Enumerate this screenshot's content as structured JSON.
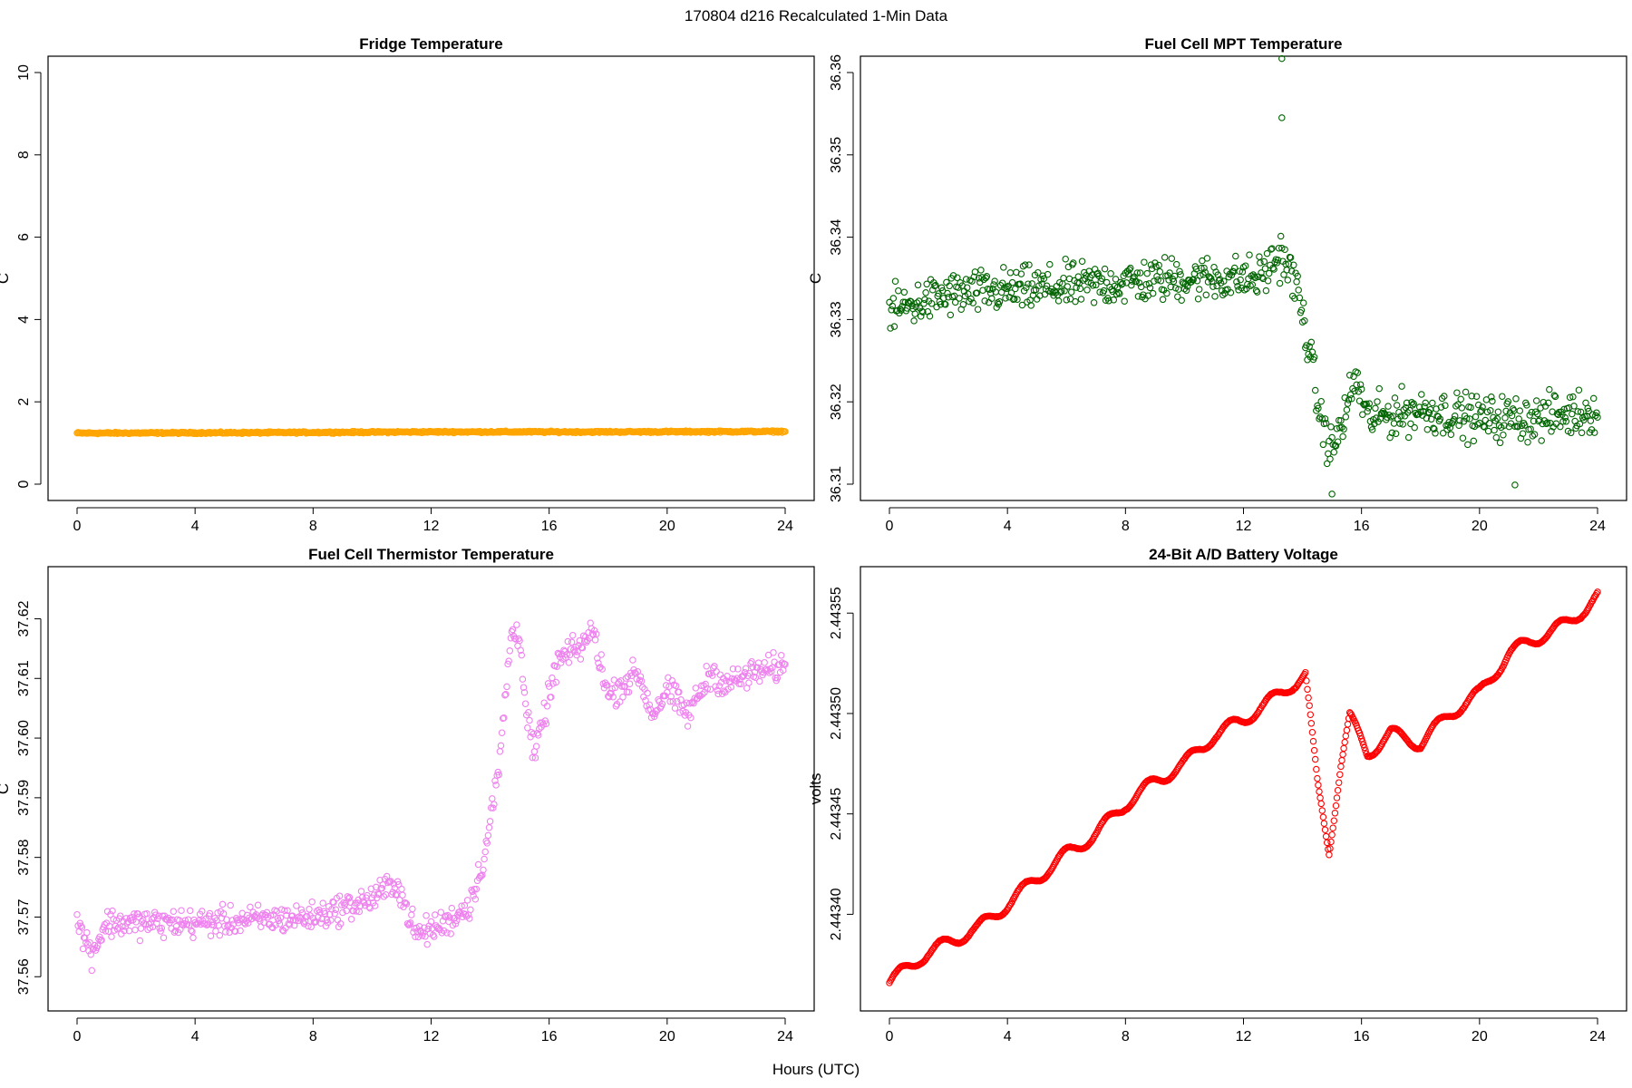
{
  "suptitle": "170804   d216   Recalculated 1-Min Data",
  "xlabel": "Hours (UTC)",
  "chart_data": [
    {
      "type": "scatter",
      "title": "Fridge Temperature",
      "xlabel": "",
      "ylabel": "C",
      "color": "#ffa500",
      "xlim": [
        0,
        24
      ],
      "ylim": [
        0,
        10
      ],
      "xticks": [
        0,
        4,
        8,
        12,
        16,
        20,
        24
      ],
      "yticks": [
        0,
        2,
        4,
        6,
        8,
        10
      ],
      "ytick_labels": [
        "0",
        "2",
        "4",
        "6",
        "8",
        "10"
      ],
      "pattern": {
        "anchors": [
          [
            0,
            1.24
          ],
          [
            6,
            1.25
          ],
          [
            12,
            1.27
          ],
          [
            18,
            1.27
          ],
          [
            24,
            1.28
          ]
        ],
        "noise": 0.06,
        "osc": []
      }
    },
    {
      "type": "scatter",
      "title": "Fuel Cell MPT Temperature",
      "xlabel": "",
      "ylabel": "C",
      "color": "#006400",
      "xlim": [
        0,
        24
      ],
      "ylim": [
        36.31,
        36.36
      ],
      "xticks": [
        0,
        4,
        8,
        12,
        16,
        20,
        24
      ],
      "yticks": [
        36.31,
        36.32,
        36.33,
        36.34,
        36.35,
        36.36
      ],
      "ytick_labels": [
        "36.31",
        "36.32",
        "36.33",
        "36.34",
        "36.35",
        "36.36"
      ],
      "pattern": {
        "anchors": [
          [
            0,
            36.331
          ],
          [
            2,
            36.333
          ],
          [
            6,
            36.334
          ],
          [
            10,
            36.335
          ],
          [
            12.5,
            36.335
          ],
          [
            13.3,
            36.338
          ],
          [
            13.8,
            36.334
          ],
          [
            14.2,
            36.327
          ],
          [
            14.6,
            36.318
          ],
          [
            15,
            36.314
          ],
          [
            15.4,
            36.318
          ],
          [
            15.8,
            36.323
          ],
          [
            16.2,
            36.318
          ],
          [
            18,
            36.319
          ],
          [
            20,
            36.318
          ],
          [
            22,
            36.318
          ],
          [
            24,
            36.319
          ]
        ],
        "noise": 0.008,
        "osc": [],
        "outliers": [
          [
            13.3,
            36.3617
          ],
          [
            13.3,
            36.3545
          ],
          [
            15.0,
            36.3088
          ],
          [
            21.2,
            36.3099
          ]
        ]
      }
    },
    {
      "type": "scatter",
      "title": "Fuel Cell Thermistor Temperature",
      "xlabel": "",
      "ylabel": "C",
      "color": "#ee82ee",
      "xlim": [
        0,
        24
      ],
      "ylim": [
        37.557,
        37.626
      ],
      "xticks": [
        0,
        4,
        8,
        12,
        16,
        20,
        24
      ],
      "yticks": [
        37.56,
        37.57,
        37.58,
        37.59,
        37.6,
        37.61,
        37.62
      ],
      "ytick_labels": [
        "37.56",
        "37.57",
        "37.58",
        "37.59",
        "37.60",
        "37.61",
        "37.62"
      ],
      "pattern": {
        "anchors": [
          [
            0,
            37.569
          ],
          [
            0.5,
            37.564
          ],
          [
            1,
            37.569
          ],
          [
            4,
            37.569
          ],
          [
            8,
            37.57
          ],
          [
            10,
            37.573
          ],
          [
            10.8,
            37.576
          ],
          [
            11.5,
            37.567
          ],
          [
            12.5,
            37.569
          ],
          [
            13.3,
            37.572
          ],
          [
            13.8,
            37.58
          ],
          [
            14.3,
            37.595
          ],
          [
            14.7,
            37.617
          ],
          [
            15,
            37.618
          ],
          [
            15.2,
            37.605
          ],
          [
            15.5,
            37.597
          ],
          [
            15.8,
            37.603
          ],
          [
            16.3,
            37.613
          ],
          [
            17,
            37.615
          ],
          [
            17.5,
            37.618
          ],
          [
            18,
            37.607
          ],
          [
            19,
            37.611
          ],
          [
            19.5,
            37.604
          ],
          [
            20,
            37.608
          ],
          [
            20.7,
            37.604
          ],
          [
            21.5,
            37.611
          ],
          [
            22,
            37.609
          ],
          [
            23,
            37.611
          ],
          [
            24,
            37.612
          ]
        ],
        "noise": 0.007,
        "osc": []
      }
    },
    {
      "type": "scatter",
      "title": "24-Bit A/D Battery Voltage",
      "xlabel": "",
      "ylabel": "volts",
      "color": "#ff0000",
      "xlim": [
        0,
        24
      ],
      "ylim": [
        2.44336,
        2.443565
      ],
      "xticks": [
        0,
        4,
        8,
        12,
        16,
        20,
        24
      ],
      "yticks": [
        2.4434,
        2.44345,
        2.4435,
        2.44355
      ],
      "ytick_labels": [
        "2.44340",
        "2.44345",
        "2.44350",
        "2.44355"
      ],
      "pattern": {
        "anchors": [
          [
            0,
            2.443366
          ],
          [
            1,
            2.443378
          ],
          [
            2,
            2.443386
          ],
          [
            3,
            2.443393
          ],
          [
            4,
            2.443405
          ],
          [
            5,
            2.443418
          ],
          [
            6,
            2.44343
          ],
          [
            7,
            2.44344
          ],
          [
            8,
            2.443455
          ],
          [
            9,
            2.443466
          ],
          [
            10,
            2.443475
          ],
          [
            11,
            2.443489
          ],
          [
            12,
            2.443497
          ],
          [
            13,
            2.443507
          ],
          [
            13.6,
            2.443514
          ],
          [
            14.1,
            2.443519
          ],
          [
            14.5,
            2.443465
          ],
          [
            14.9,
            2.443432
          ],
          [
            15.3,
            2.443475
          ],
          [
            15.6,
            2.443498
          ],
          [
            16.2,
            2.44348
          ],
          [
            17,
            2.44349
          ],
          [
            18,
            2.443485
          ],
          [
            19,
            2.4435
          ],
          [
            20,
            2.44351
          ],
          [
            21,
            2.44353
          ],
          [
            22,
            2.443538
          ],
          [
            23,
            2.443545
          ],
          [
            24,
            2.443558
          ]
        ],
        "noise": 5e-07,
        "osc": [
          1.4,
          3.2e-06
        ]
      }
    }
  ]
}
